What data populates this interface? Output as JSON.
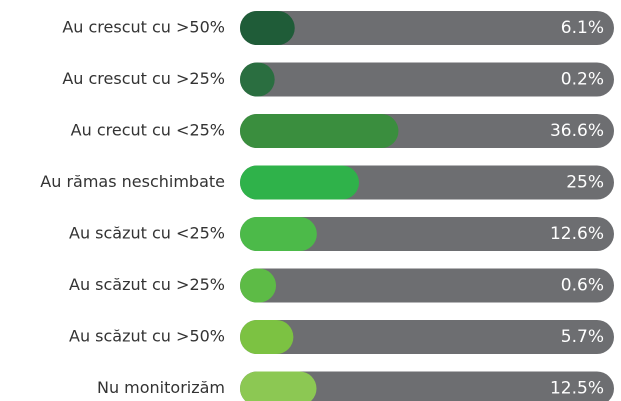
{
  "chart_data": {
    "type": "bar",
    "orientation": "horizontal",
    "categories": [
      "Au crescut cu >50%",
      "Au crescut cu >25%",
      "Au crecut cu <25%",
      "Au rămas neschimbate",
      "Au scăzut cu <25%",
      "Au scăzut cu >25%",
      "Au scăzut cu >50%",
      "Nu monitorizăm"
    ],
    "values": [
      6.1,
      0.2,
      36.6,
      25,
      12.6,
      0.6,
      5.7,
      12.5
    ],
    "value_labels": [
      "6.1%",
      "0.2%",
      "36.6%",
      "25%",
      "12.6%",
      "0.6%",
      "5.7%",
      "12.5%"
    ],
    "colors": [
      "#1f5c38",
      "#2a6e40",
      "#3a8e3e",
      "#2fb24a",
      "#4cba49",
      "#5dbb46",
      "#7cc242",
      "#8cc853"
    ],
    "track_color": "#6d6e71",
    "xlim": [
      0,
      100
    ]
  }
}
